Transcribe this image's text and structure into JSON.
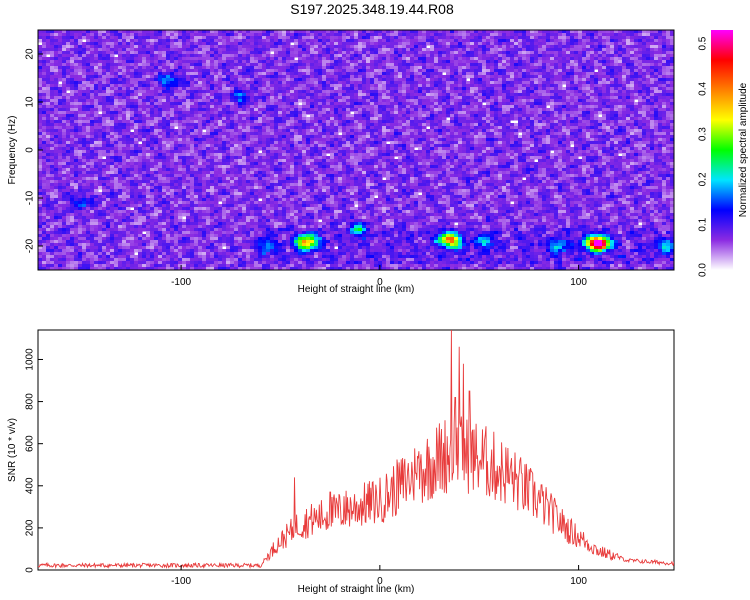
{
  "title": "S197.2025.348.19.44.R08",
  "chart_data": [
    {
      "type": "heatmap",
      "xlabel": "Height of straight line (km)",
      "ylabel": "Frequency (Hz)",
      "xlim": [
        -172,
        148
      ],
      "ylim": [
        -25,
        25
      ],
      "xticks": [
        -100,
        0,
        100
      ],
      "yticks": [
        -20,
        -10,
        0,
        10,
        20
      ],
      "colorbar": {
        "label": "Normalized spectral amplitude",
        "range": [
          0.0,
          0.53
        ],
        "ticks": [
          0.0,
          0.1,
          0.2,
          0.3,
          0.4,
          0.5
        ],
        "colormap": [
          "#ffffff",
          "#8b2be2",
          "#0000ff",
          "#00e5ff",
          "#00ff00",
          "#ffff00",
          "#ff8000",
          "#ff0000",
          "#ff00ff"
        ]
      },
      "hotspots": [
        {
          "x": -106,
          "y": 14.5,
          "v": 0.12
        },
        {
          "x": -70,
          "y": 11,
          "v": 0.1
        },
        {
          "x": -150,
          "y": -11,
          "v": 0.09
        },
        {
          "x": -35,
          "y": -19,
          "v": 0.22
        },
        {
          "x": -39,
          "y": -19.5,
          "v": 0.18
        },
        {
          "x": -57,
          "y": -20,
          "v": 0.12
        },
        {
          "x": -11,
          "y": -16.5,
          "v": 0.15
        },
        {
          "x": 37,
          "y": -19,
          "v": 0.24
        },
        {
          "x": 33,
          "y": -18.5,
          "v": 0.18
        },
        {
          "x": 53,
          "y": -19,
          "v": 0.12
        },
        {
          "x": 90,
          "y": -20,
          "v": 0.12
        },
        {
          "x": 111,
          "y": -19.5,
          "v": 0.45
        },
        {
          "x": 106,
          "y": -19.5,
          "v": 0.2
        },
        {
          "x": 144,
          "y": -20,
          "v": 0.12
        }
      ]
    },
    {
      "type": "line",
      "xlabel": "Height of straight line (km)",
      "ylabel": "SNR (10 * v/v)",
      "xlim": [
        -172,
        148
      ],
      "ylim": [
        0,
        1140
      ],
      "xticks": [
        -100,
        0,
        100
      ],
      "yticks": [
        0,
        200,
        400,
        600,
        800,
        1000
      ],
      "color": "#e83b3b",
      "series": [
        {
          "envelope": [
            [
              -172,
              22
            ],
            [
              -60,
              22
            ],
            [
              -52,
              120
            ],
            [
              -40,
              220
            ],
            [
              -20,
              280
            ],
            [
              0,
              330
            ],
            [
              20,
              470
            ],
            [
              35,
              560
            ],
            [
              50,
              530
            ],
            [
              65,
              450
            ],
            [
              80,
              330
            ],
            [
              95,
              190
            ],
            [
              110,
              90
            ],
            [
              125,
              45
            ],
            [
              148,
              32
            ]
          ],
          "spikes": [
            [
              -43,
              440
            ],
            [
              -25,
              370
            ],
            [
              -18,
              350
            ],
            [
              18,
              460
            ],
            [
              36,
              1140
            ],
            [
              38,
              820
            ],
            [
              40,
              1060
            ],
            [
              42,
              980
            ],
            [
              45,
              850
            ]
          ]
        }
      ]
    }
  ]
}
